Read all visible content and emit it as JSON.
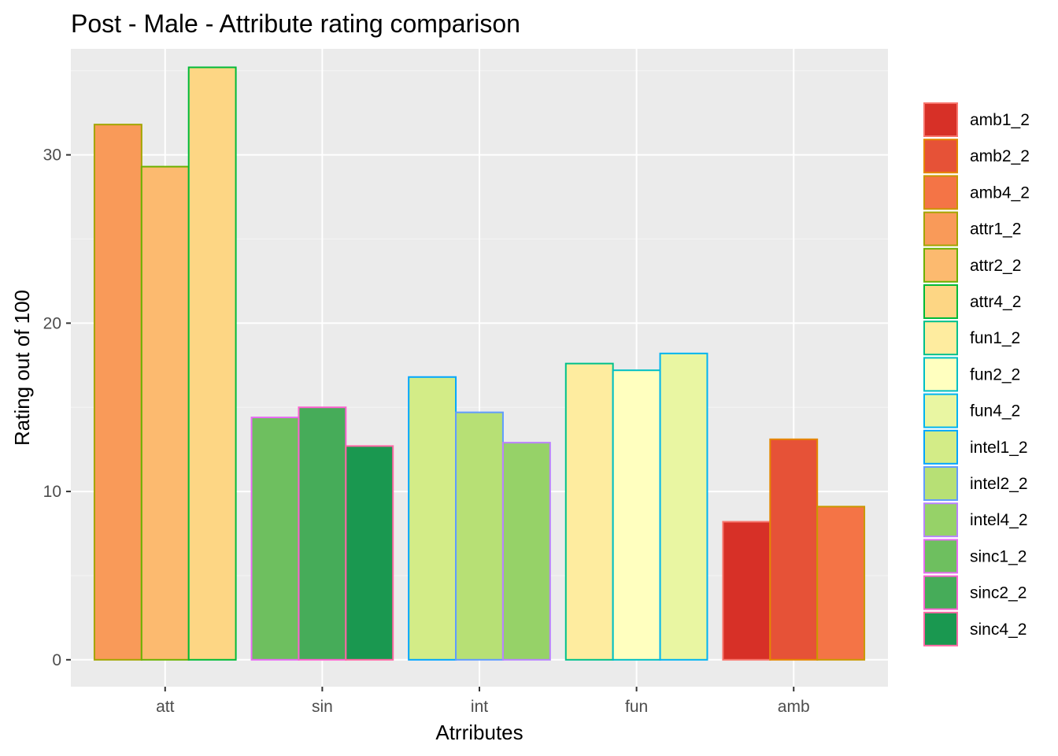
{
  "chart_data": {
    "type": "bar",
    "title": "Post - Male - Attribute rating comparison",
    "xlabel": "Atrributes",
    "ylabel": "Rating out of 100",
    "ylim": [
      -1.6,
      36.3
    ],
    "yticks": [
      0,
      10,
      20,
      30
    ],
    "grid": true,
    "legend_position": "right",
    "categories": [
      "att",
      "sin",
      "int",
      "fun",
      "amb"
    ],
    "groups": {
      "att": [
        {
          "series": "attr1_2",
          "value": 31.8
        },
        {
          "series": "attr2_2",
          "value": 29.3
        },
        {
          "series": "attr4_2",
          "value": 35.2
        }
      ],
      "sin": [
        {
          "series": "sinc1_2",
          "value": 14.4
        },
        {
          "series": "sinc2_2",
          "value": 15.0
        },
        {
          "series": "sinc4_2",
          "value": 12.7
        }
      ],
      "int": [
        {
          "series": "intel1_2",
          "value": 16.8
        },
        {
          "series": "intel2_2",
          "value": 14.7
        },
        {
          "series": "intel4_2",
          "value": 12.9
        }
      ],
      "fun": [
        {
          "series": "fun1_2",
          "value": 17.6
        },
        {
          "series": "fun2_2",
          "value": 17.2
        },
        {
          "series": "fun4_2",
          "value": 18.2
        }
      ],
      "amb": [
        {
          "series": "amb1_2",
          "value": 8.2
        },
        {
          "series": "amb2_2",
          "value": 13.1
        },
        {
          "series": "amb4_2",
          "value": 9.1
        }
      ]
    },
    "series": [
      {
        "name": "amb1_2",
        "fill": "#d73027",
        "outline": "#f8766d"
      },
      {
        "name": "amb2_2",
        "fill": "#e65237",
        "outline": "#e58700"
      },
      {
        "name": "amb4_2",
        "fill": "#f47446",
        "outline": "#c99800"
      },
      {
        "name": "attr1_2",
        "fill": "#f99a59",
        "outline": "#a3a500"
      },
      {
        "name": "attr2_2",
        "fill": "#fcba6f",
        "outline": "#6bb100"
      },
      {
        "name": "attr4_2",
        "fill": "#fdd684",
        "outline": "#00ba38"
      },
      {
        "name": "fun1_2",
        "fill": "#feec9f",
        "outline": "#00c08b"
      },
      {
        "name": "fun2_2",
        "fill": "#ffffbf",
        "outline": "#00bfc4"
      },
      {
        "name": "fun4_2",
        "fill": "#e9f6a2",
        "outline": "#00b4f0"
      },
      {
        "name": "intel1_2",
        "fill": "#d3ec87",
        "outline": "#00a5ff"
      },
      {
        "name": "intel2_2",
        "fill": "#b7e075",
        "outline": "#619cff"
      },
      {
        "name": "intel4_2",
        "fill": "#96d268",
        "outline": "#b983ff"
      },
      {
        "name": "sinc1_2",
        "fill": "#6ebf5f",
        "outline": "#e76bf3"
      },
      {
        "name": "sinc2_2",
        "fill": "#46ac59",
        "outline": "#fd61d1"
      },
      {
        "name": "sinc4_2",
        "fill": "#1a9850",
        "outline": "#ff67a4"
      }
    ],
    "colors": {
      "panel_background": "#ebebeb",
      "grid_major": "#ffffff",
      "grid_minor": "#f5f5f5",
      "tick_label": "#4d4d4d",
      "tick_mark": "#333333"
    }
  }
}
